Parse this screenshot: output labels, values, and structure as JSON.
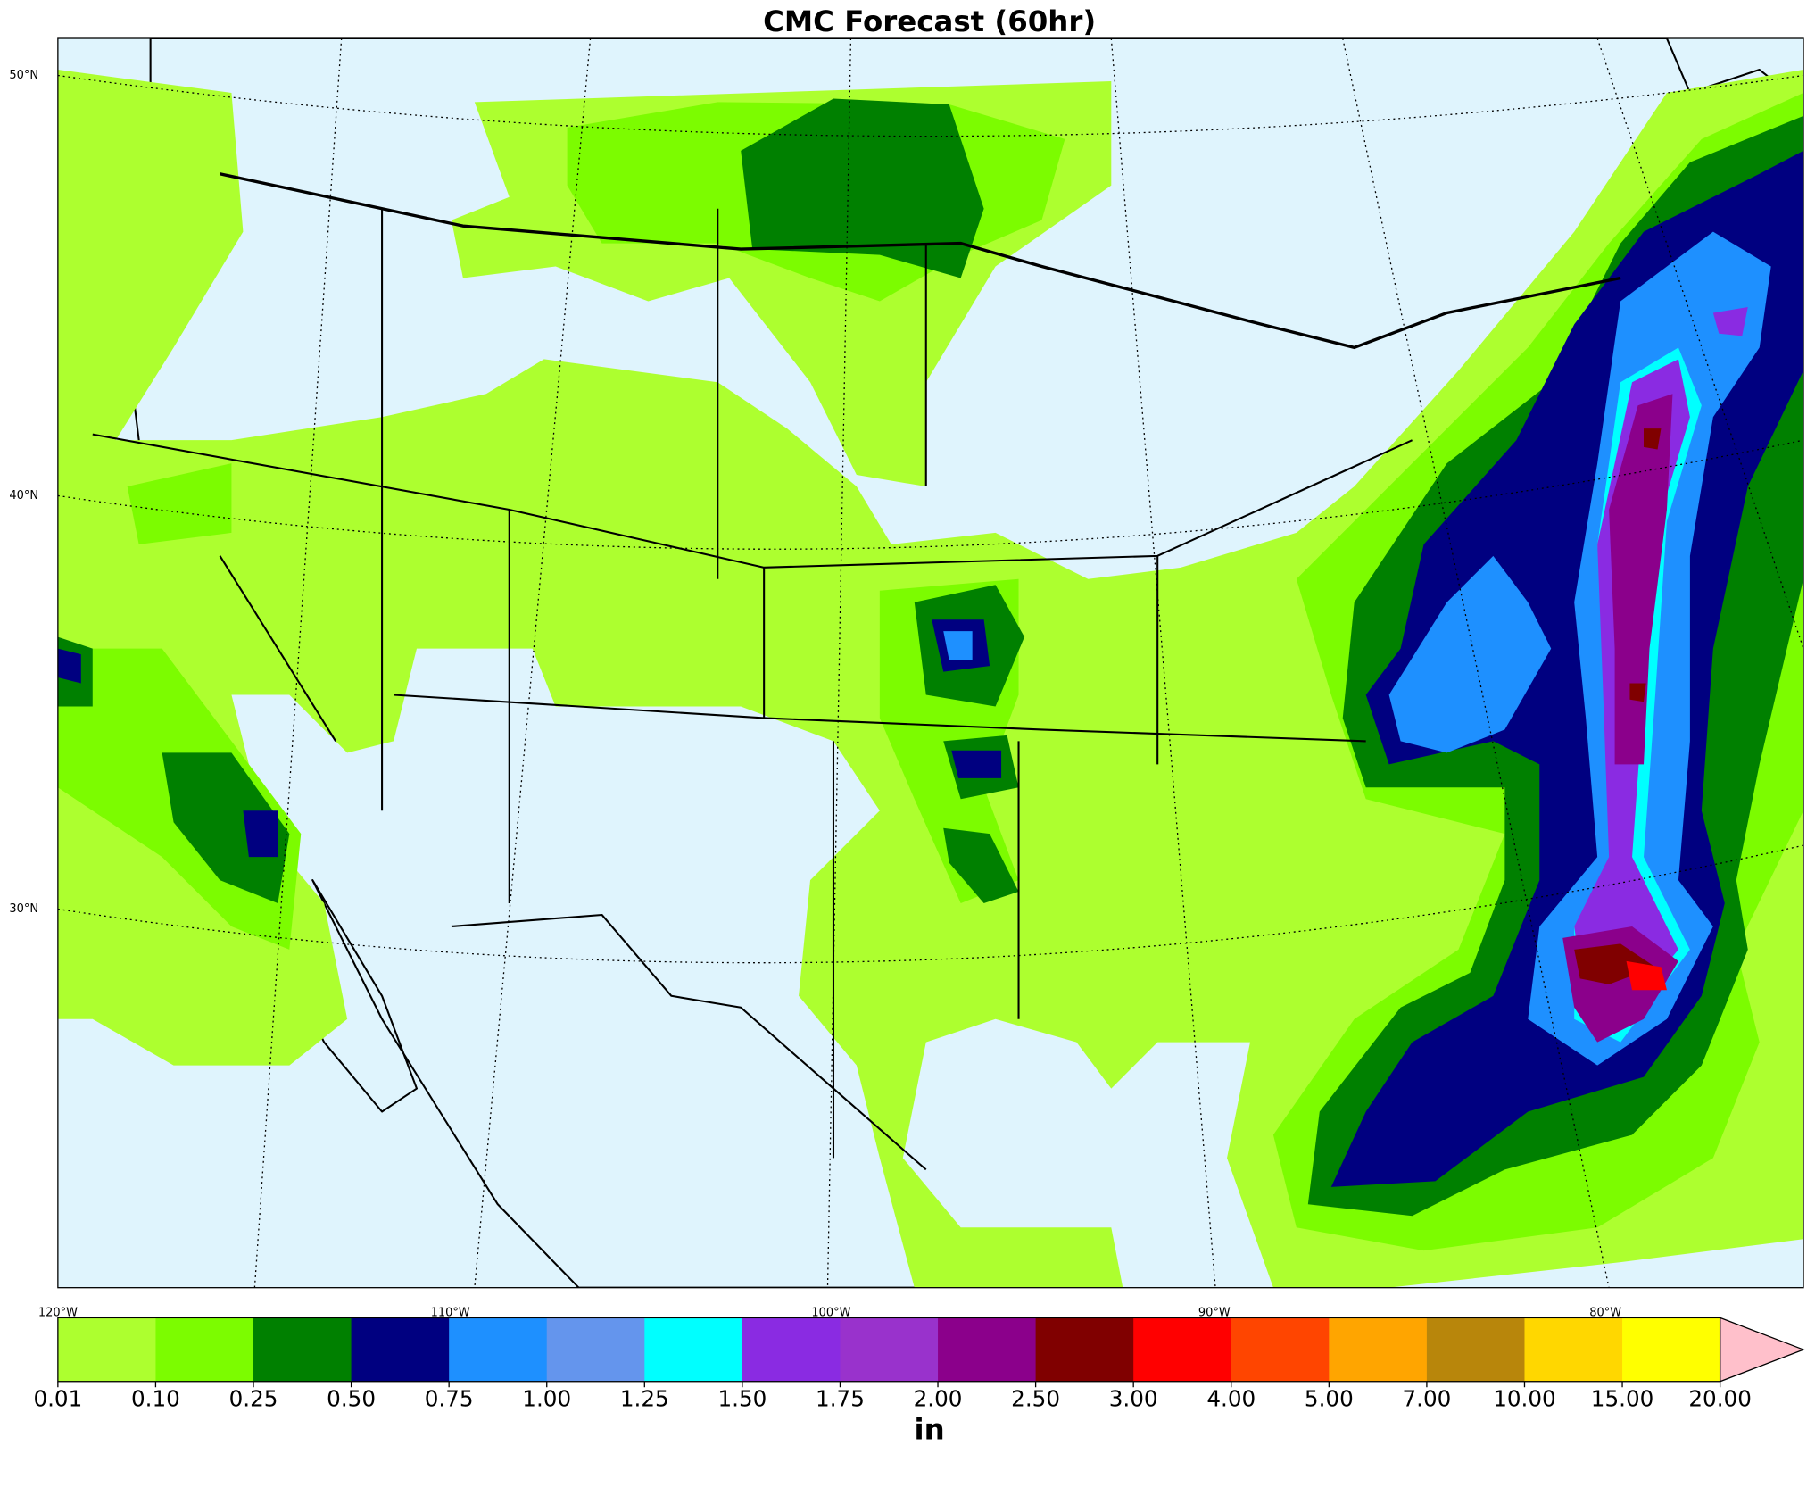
{
  "title": "CMC Forecast (60hr)",
  "latitude_labels": [
    "50°N",
    "40°N",
    "30°N"
  ],
  "longitude_labels": [
    "120°W",
    "110°W",
    "100°W",
    "90°W",
    "80°W"
  ],
  "colorbar": {
    "ticks": [
      "0.01",
      "0.10",
      "0.25",
      "0.50",
      "0.75",
      "1.00",
      "1.25",
      "1.50",
      "1.75",
      "2.00",
      "2.50",
      "3.00",
      "4.00",
      "5.00",
      "7.00",
      "10.00",
      "15.00",
      "20.00"
    ],
    "colors": [
      "#adff2f",
      "#7cfc00",
      "#008000",
      "#000080",
      "#1e90ff",
      "#6495ed",
      "#00ffff",
      "#8a2be2",
      "#9932cc",
      "#8b008b",
      "#800000",
      "#ff0000",
      "#ff4500",
      "#ffa500",
      "#b8860b",
      "#ffd700",
      "#ffff00"
    ],
    "extend_color": "#ffc0cb",
    "unit": "in"
  }
}
